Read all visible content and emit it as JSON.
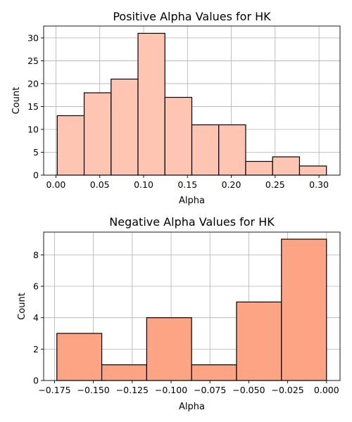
{
  "chart_data": [
    {
      "type": "bar",
      "subtype": "histogram",
      "title": "Positive Alpha Values for HK",
      "xlabel": "Alpha",
      "ylabel": "Count",
      "bin_edges": [
        0.0015,
        0.0322,
        0.0629,
        0.0936,
        0.1243,
        0.155,
        0.1857,
        0.2164,
        0.2471,
        0.2778,
        0.3085
      ],
      "values": [
        13,
        18,
        21,
        31,
        17,
        11,
        11,
        3,
        4,
        2
      ],
      "xlim": [
        -0.014,
        0.324
      ],
      "ylim": [
        0,
        32.6
      ],
      "xticks": [
        0.0,
        0.05,
        0.1,
        0.15,
        0.2,
        0.25,
        0.3
      ],
      "xtick_labels": [
        "0.00",
        "0.05",
        "0.10",
        "0.15",
        "0.20",
        "0.25",
        "0.30"
      ],
      "yticks": [
        0,
        5,
        10,
        15,
        20,
        25,
        30
      ],
      "ytick_labels": [
        "0",
        "5",
        "10",
        "15",
        "20",
        "25",
        "30"
      ],
      "grid": true,
      "color": "#fdc5b2"
    },
    {
      "type": "bar",
      "subtype": "histogram",
      "title": "Negative Alpha Values for HK",
      "xlabel": "Alpha",
      "ylabel": "Count",
      "bin_edges": [
        -0.1735,
        -0.1446,
        -0.1157,
        -0.0868,
        -0.0579,
        -0.029,
        0.0
      ],
      "values": [
        3,
        1,
        4,
        1,
        5,
        9
      ],
      "xlim": [
        -0.182,
        0.0087
      ],
      "ylim": [
        0,
        9.45
      ],
      "xticks": [
        -0.175,
        -0.15,
        -0.125,
        -0.1,
        -0.075,
        -0.05,
        -0.025,
        0.0
      ],
      "xtick_labels": [
        "−0.175",
        "−0.150",
        "−0.125",
        "−0.100",
        "−0.075",
        "−0.050",
        "−0.025",
        "0.000"
      ],
      "yticks": [
        0,
        2,
        4,
        6,
        8
      ],
      "ytick_labels": [
        "0",
        "2",
        "4",
        "6",
        "8"
      ],
      "grid": true,
      "color": "#fca483"
    }
  ]
}
